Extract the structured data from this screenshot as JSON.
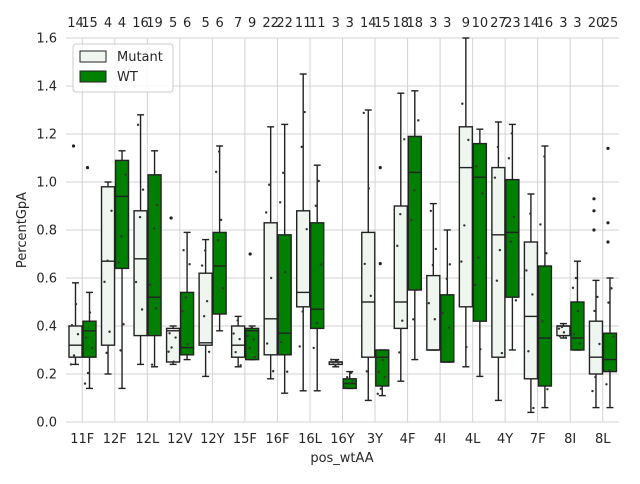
{
  "chart_data": {
    "type": "box",
    "xlabel": "pos_wtAA",
    "ylabel": "PercentGpA",
    "ylim": [
      0.0,
      1.6
    ],
    "yticks": [
      0.0,
      0.2,
      0.4,
      0.6,
      0.8,
      1.0,
      1.2,
      1.4,
      1.6
    ],
    "grid": true,
    "legend_position": "top-left",
    "categories": [
      "11F",
      "12F",
      "12L",
      "12V",
      "12Y",
      "15F",
      "16F",
      "16L",
      "16Y",
      "3Y",
      "4F",
      "4I",
      "4L",
      "4Y",
      "7F",
      "8I",
      "8L"
    ],
    "count_labels": [
      "14",
      "15",
      "4",
      "4",
      "16",
      "19",
      "5",
      "6",
      "5",
      "6",
      "7",
      "9",
      "22",
      "22",
      "11",
      "11",
      "3",
      "3",
      "14",
      "15",
      "18",
      "18",
      "3",
      "3",
      "9",
      "10",
      "27",
      "23",
      "14",
      "16",
      "3",
      "3",
      "20",
      "25"
    ],
    "series": [
      {
        "name": "Mutant",
        "color": "#eff6ef",
        "boxes": [
          {
            "min": 0.24,
            "q1": 0.27,
            "median": 0.32,
            "q3": 0.4,
            "max": 0.58,
            "outliers": [
              1.15
            ]
          },
          {
            "min": 0.2,
            "q1": 0.32,
            "median": 0.67,
            "q3": 0.98,
            "max": 1.0,
            "outliers": []
          },
          {
            "min": 0.24,
            "q1": 0.36,
            "median": 0.68,
            "q3": 0.88,
            "max": 1.28,
            "outliers": []
          },
          {
            "min": 0.24,
            "q1": 0.25,
            "median": 0.38,
            "q3": 0.39,
            "max": 0.4,
            "outliers": [
              0.85
            ]
          },
          {
            "min": 0.19,
            "q1": 0.32,
            "median": 0.33,
            "q3": 0.62,
            "max": 0.76,
            "outliers": []
          },
          {
            "min": 0.23,
            "q1": 0.27,
            "median": 0.32,
            "q3": 0.4,
            "max": 0.44,
            "outliers": []
          },
          {
            "min": 0.18,
            "q1": 0.28,
            "median": 0.43,
            "q3": 0.83,
            "max": 1.23,
            "outliers": []
          },
          {
            "min": 0.13,
            "q1": 0.48,
            "median": 0.54,
            "q3": 0.88,
            "max": 1.45,
            "outliers": []
          },
          {
            "min": 0.23,
            "q1": 0.24,
            "median": 0.25,
            "q3": 0.25,
            "max": 0.26,
            "outliers": []
          },
          {
            "min": 0.09,
            "q1": 0.27,
            "median": 0.5,
            "q3": 0.79,
            "max": 1.3,
            "outliers": []
          },
          {
            "min": 0.17,
            "q1": 0.39,
            "median": 0.5,
            "q3": 0.9,
            "max": 1.37,
            "outliers": []
          },
          {
            "min": 0.3,
            "q1": 0.3,
            "median": 0.3,
            "q3": 0.61,
            "max": 0.91,
            "outliers": []
          },
          {
            "min": 0.23,
            "q1": 0.48,
            "median": 1.06,
            "q3": 1.23,
            "max": 1.6,
            "outliers": []
          },
          {
            "min": 0.09,
            "q1": 0.27,
            "median": 0.78,
            "q3": 1.06,
            "max": 1.25,
            "outliers": []
          },
          {
            "min": 0.04,
            "q1": 0.18,
            "median": 0.44,
            "q3": 0.75,
            "max": 0.95,
            "outliers": []
          },
          {
            "min": 0.35,
            "q1": 0.36,
            "median": 0.4,
            "q3": 0.4,
            "max": 0.41,
            "outliers": []
          },
          {
            "min": 0.06,
            "q1": 0.2,
            "median": 0.27,
            "q3": 0.42,
            "max": 0.59,
            "outliers": [
              0.8,
              0.88,
              0.93
            ]
          }
        ]
      },
      {
        "name": "WT",
        "color": "#008000",
        "boxes": [
          {
            "min": 0.14,
            "q1": 0.27,
            "median": 0.38,
            "q3": 0.42,
            "max": 0.54,
            "outliers": [
              1.06
            ]
          },
          {
            "min": 0.14,
            "q1": 0.64,
            "median": 0.94,
            "q3": 1.09,
            "max": 1.13,
            "outliers": []
          },
          {
            "min": 0.23,
            "q1": 0.36,
            "median": 0.52,
            "q3": 1.03,
            "max": 1.13,
            "outliers": []
          },
          {
            "min": 0.26,
            "q1": 0.28,
            "median": 0.31,
            "q3": 0.54,
            "max": 0.79,
            "outliers": []
          },
          {
            "min": 0.38,
            "q1": 0.45,
            "median": 0.65,
            "q3": 0.79,
            "max": 1.15,
            "outliers": []
          },
          {
            "min": 0.26,
            "q1": 0.26,
            "median": 0.38,
            "q3": 0.39,
            "max": 0.4,
            "outliers": [
              0.7
            ]
          },
          {
            "min": 0.12,
            "q1": 0.28,
            "median": 0.37,
            "q3": 0.78,
            "max": 1.24,
            "outliers": []
          },
          {
            "min": 0.13,
            "q1": 0.39,
            "median": 0.47,
            "q3": 0.83,
            "max": 1.07,
            "outliers": []
          },
          {
            "min": 0.14,
            "q1": 0.14,
            "median": 0.16,
            "q3": 0.18,
            "max": 0.21,
            "outliers": []
          },
          {
            "min": 0.11,
            "q1": 0.15,
            "median": 0.27,
            "q3": 0.3,
            "max": 0.3,
            "outliers": [
              0.66,
              1.06
            ]
          },
          {
            "min": 0.26,
            "q1": 0.55,
            "median": 1.04,
            "q3": 1.19,
            "max": 1.38,
            "outliers": []
          },
          {
            "min": 0.25,
            "q1": 0.25,
            "median": 0.25,
            "q3": 0.53,
            "max": 0.8,
            "outliers": []
          },
          {
            "min": 0.19,
            "q1": 0.42,
            "median": 1.02,
            "q3": 1.16,
            "max": 1.22,
            "outliers": []
          },
          {
            "min": 0.3,
            "q1": 0.52,
            "median": 0.79,
            "q3": 1.01,
            "max": 1.24,
            "outliers": []
          },
          {
            "min": 0.06,
            "q1": 0.15,
            "median": 0.35,
            "q3": 0.65,
            "max": 1.15,
            "outliers": []
          },
          {
            "min": 0.3,
            "q1": 0.3,
            "median": 0.35,
            "q3": 0.5,
            "max": 0.67,
            "outliers": []
          },
          {
            "min": 0.06,
            "q1": 0.21,
            "median": 0.26,
            "q3": 0.37,
            "max": 0.6,
            "outliers": [
              0.75,
              0.83,
              1.14
            ]
          }
        ]
      }
    ]
  }
}
